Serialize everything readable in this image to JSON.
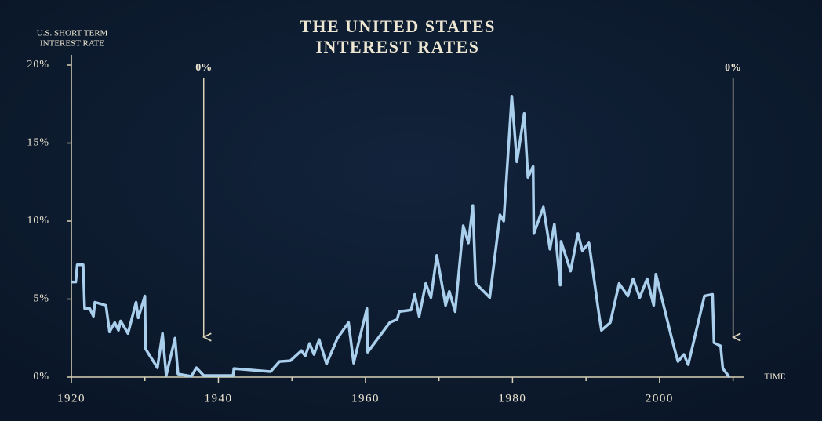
{
  "chart_data": {
    "type": "line",
    "title": [
      "THE UNITED STATES",
      "INTEREST RATES"
    ],
    "ylabel": [
      "U.S. SHORT TERM",
      "INTEREST RATE"
    ],
    "xlabel": "TIME",
    "xlim": [
      1920,
      2011
    ],
    "ylim": [
      0,
      20
    ],
    "xticks": [
      1920,
      1940,
      1960,
      1980,
      2000
    ],
    "xminorticks": [
      1930,
      1950,
      1970,
      1990,
      2010
    ],
    "yticks": [
      {
        "value": 0,
        "label": "0%"
      },
      {
        "value": 5,
        "label": "5%"
      },
      {
        "value": 10,
        "label": "10%"
      },
      {
        "value": 15,
        "label": "15%"
      },
      {
        "value": 20,
        "label": "20%"
      }
    ],
    "annotations": [
      {
        "text": "0%",
        "x": 1938
      },
      {
        "text": "0%",
        "x": 2010
      }
    ],
    "series": [
      {
        "name": "U.S. short term interest rate",
        "color": "#a9cfec",
        "x": [
          1920,
          1920.6,
          1920.8,
          1921.6,
          1921.8,
          1922.5,
          1923,
          1923.2,
          1924.7,
          1925.2,
          1925.9,
          1926.4,
          1926.7,
          1927.7,
          1928.8,
          1929.1,
          1930,
          1930.1,
          1931.7,
          1932.4,
          1932.9,
          1934.1,
          1934.5,
          1936.3,
          1937,
          1938,
          1942,
          1942.1,
          1947.1,
          1948.3,
          1949.8,
          1951.3,
          1951.8,
          1952.4,
          1953,
          1953.7,
          1954.7,
          1956.2,
          1957.7,
          1958.4,
          1960.2,
          1960.3,
          1963.3,
          1964.3,
          1964.6,
          1966.2,
          1966.7,
          1967.3,
          1968.2,
          1968.9,
          1969.7,
          1970.9,
          1971.4,
          1972.2,
          1973.3,
          1974,
          1974.6,
          1975,
          1976.9,
          1978.3,
          1978.8,
          1979.9,
          1980.6,
          1981.6,
          1982.1,
          1982.8,
          1982.9,
          1984.2,
          1985.1,
          1985.7,
          1986.5,
          1986.6,
          1987.9,
          1988.9,
          1989.5,
          1990.4,
          1991.8,
          1992.1,
          1993.3,
          1994.5,
          1995.7,
          1996.4,
          1997.3,
          1998.3,
          1999.2,
          1999.5,
          2001.8,
          2002.5,
          2003.3,
          2003.9,
          2006.1,
          2007.2,
          2007.4,
          2008.3,
          2008.6,
          2009.5
        ],
        "values": [
          6.1,
          6.1,
          7.2,
          7.2,
          4.4,
          4.4,
          3.9,
          4.8,
          4.6,
          2.9,
          3.5,
          3.0,
          3.6,
          2.8,
          4.8,
          3.8,
          5.2,
          1.8,
          0.6,
          2.8,
          0.1,
          2.5,
          0.2,
          0.05,
          0.6,
          0.1,
          0.1,
          0.55,
          0.35,
          1.0,
          1.05,
          1.7,
          1.35,
          2.15,
          1.45,
          2.4,
          0.85,
          2.5,
          3.5,
          0.9,
          4.4,
          1.6,
          3.5,
          3.7,
          4.2,
          4.3,
          5.3,
          3.9,
          6.0,
          5.1,
          7.8,
          4.6,
          5.5,
          4.2,
          9.7,
          8.6,
          11.0,
          6.0,
          5.1,
          10.4,
          10.0,
          18.0,
          13.8,
          16.9,
          12.8,
          13.5,
          9.2,
          10.9,
          8.2,
          9.8,
          5.9,
          8.7,
          6.8,
          9.2,
          8.1,
          8.6,
          3.9,
          3.0,
          3.5,
          6.0,
          5.2,
          6.3,
          5.1,
          6.3,
          4.6,
          6.6,
          2.2,
          1.0,
          1.45,
          0.8,
          5.2,
          5.3,
          2.2,
          2.0,
          0.55,
          0
        ]
      }
    ]
  }
}
